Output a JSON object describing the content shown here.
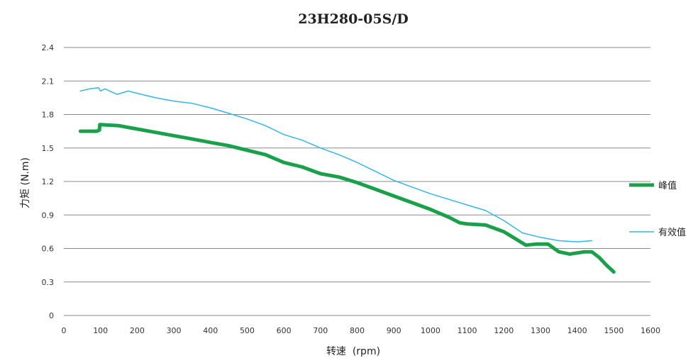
{
  "chart_data": {
    "type": "line",
    "title": "23H280-05S/D",
    "xlabel": "转速  (rpm)",
    "ylabel": "力矩 (N.m)",
    "xlim": [
      0,
      1600
    ],
    "ylim": [
      0,
      2.4
    ],
    "x_ticks": [
      "0",
      "100",
      "200",
      "300",
      "400",
      "500",
      "600",
      "700",
      "800",
      "900",
      "1000",
      "1100",
      "1200",
      "1300",
      "1400",
      "1500",
      "1600"
    ],
    "y_ticks": [
      "0",
      "0.3",
      "0.6",
      "0.9",
      "1.2",
      "1.5",
      "1.8",
      "2.1",
      "2.4"
    ],
    "grid": "horizontal",
    "legend_position": "right",
    "series": [
      {
        "name": "峰值",
        "color": "#1aa04a",
        "points": [
          [
            45,
            1.65
          ],
          [
            90,
            1.65
          ],
          [
            97,
            1.66
          ],
          [
            98,
            1.71
          ],
          [
            150,
            1.7
          ],
          [
            200,
            1.67
          ],
          [
            250,
            1.64
          ],
          [
            300,
            1.61
          ],
          [
            350,
            1.58
          ],
          [
            400,
            1.55
          ],
          [
            450,
            1.52
          ],
          [
            500,
            1.48
          ],
          [
            550,
            1.44
          ],
          [
            600,
            1.37
          ],
          [
            650,
            1.33
          ],
          [
            700,
            1.27
          ],
          [
            750,
            1.24
          ],
          [
            800,
            1.19
          ],
          [
            850,
            1.13
          ],
          [
            900,
            1.07
          ],
          [
            950,
            1.01
          ],
          [
            1000,
            0.95
          ],
          [
            1050,
            0.88
          ],
          [
            1080,
            0.83
          ],
          [
            1100,
            0.82
          ],
          [
            1150,
            0.81
          ],
          [
            1200,
            0.75
          ],
          [
            1230,
            0.69
          ],
          [
            1260,
            0.63
          ],
          [
            1290,
            0.64
          ],
          [
            1320,
            0.64
          ],
          [
            1350,
            0.57
          ],
          [
            1380,
            0.55
          ],
          [
            1420,
            0.57
          ],
          [
            1440,
            0.57
          ],
          [
            1460,
            0.52
          ],
          [
            1480,
            0.45
          ],
          [
            1500,
            0.39
          ]
        ]
      },
      {
        "name": "有效值",
        "color": "#33b5ea",
        "points": [
          [
            45,
            2.01
          ],
          [
            70,
            2.03
          ],
          [
            95,
            2.04
          ],
          [
            100,
            2.01
          ],
          [
            112,
            2.03
          ],
          [
            125,
            2.01
          ],
          [
            145,
            1.98
          ],
          [
            155,
            1.99
          ],
          [
            175,
            2.01
          ],
          [
            200,
            1.99
          ],
          [
            250,
            1.95
          ],
          [
            300,
            1.92
          ],
          [
            350,
            1.9
          ],
          [
            400,
            1.86
          ],
          [
            450,
            1.81
          ],
          [
            500,
            1.76
          ],
          [
            550,
            1.7
          ],
          [
            600,
            1.62
          ],
          [
            650,
            1.57
          ],
          [
            700,
            1.5
          ],
          [
            750,
            1.44
          ],
          [
            800,
            1.37
          ],
          [
            850,
            1.29
          ],
          [
            900,
            1.21
          ],
          [
            950,
            1.15
          ],
          [
            1000,
            1.09
          ],
          [
            1050,
            1.04
          ],
          [
            1100,
            0.99
          ],
          [
            1150,
            0.94
          ],
          [
            1200,
            0.85
          ],
          [
            1250,
            0.74
          ],
          [
            1300,
            0.7
          ],
          [
            1350,
            0.67
          ],
          [
            1400,
            0.66
          ],
          [
            1440,
            0.67
          ]
        ]
      }
    ]
  }
}
